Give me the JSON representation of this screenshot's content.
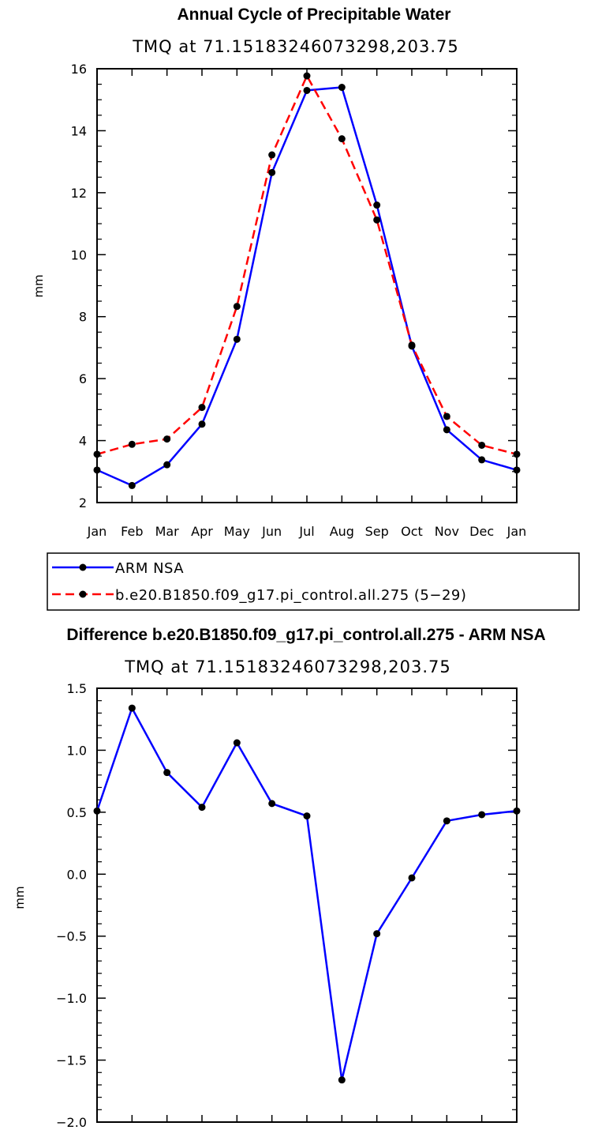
{
  "colors": {
    "series_1": "#0000ff",
    "series_2": "#ff0000",
    "marker": "#000000",
    "axis": "#000000"
  },
  "chart_data": [
    {
      "type": "line",
      "title": "Annual Cycle of Precipitable Water",
      "subtitle": "TMQ at 71.15183246073298,203.75",
      "xlabel": "",
      "ylabel": "mm",
      "categories": [
        "Jan",
        "Feb",
        "Mar",
        "Apr",
        "May",
        "Jun",
        "Jul",
        "Aug",
        "Sep",
        "Oct",
        "Nov",
        "Dec",
        "Jan"
      ],
      "ylim": [
        2,
        16
      ],
      "yticks": [
        "2",
        "4",
        "6",
        "8",
        "10",
        "12",
        "14",
        "16"
      ],
      "grid": false,
      "legend_position": "bottom-left",
      "series": [
        {
          "name": "ARM NSA",
          "style": "solid",
          "color": "#0000ff",
          "values": [
            3.05,
            2.55,
            3.22,
            4.53,
            7.27,
            12.65,
            15.3,
            15.4,
            11.6,
            7.05,
            4.35,
            3.38,
            3.05
          ]
        },
        {
          "name": "b.e20.B1850.f09_g17.pi_control.all.275 (5−29)",
          "style": "dashed",
          "color": "#ff0000",
          "values": [
            3.56,
            3.88,
            4.05,
            5.07,
            8.33,
            13.22,
            15.77,
            13.74,
            11.12,
            7.08,
            4.78,
            3.85,
            3.56
          ]
        }
      ]
    },
    {
      "type": "line",
      "title": "Difference b.e20.B1850.f09_g17.pi_control.all.275 - ARM NSA",
      "subtitle": "TMQ at 71.15183246073298,203.75",
      "xlabel": "",
      "ylabel": "mm",
      "categories": [
        "Jan",
        "Feb",
        "Mar",
        "Apr",
        "May",
        "Jun",
        "Jul",
        "Aug",
        "Sep",
        "Oct",
        "Nov",
        "Dec",
        "Jan"
      ],
      "ylim": [
        -2.0,
        1.5
      ],
      "yticks": [
        "−2.0",
        "−1.5",
        "−1.0",
        "−0.5",
        "0.0",
        "0.5",
        "1.0",
        "1.5"
      ],
      "grid": false,
      "series": [
        {
          "color": "#0000ff",
          "style": "solid",
          "values": [
            0.51,
            1.34,
            0.82,
            0.54,
            1.06,
            0.57,
            0.47,
            -1.66,
            -0.48,
            -0.03,
            0.43,
            0.48,
            0.51
          ]
        }
      ]
    }
  ]
}
